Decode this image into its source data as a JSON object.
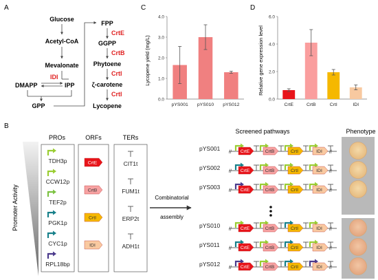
{
  "panel_labels": {
    "a": "A",
    "b": "B",
    "c": "C",
    "d": "D"
  },
  "pathway": {
    "glucose": "Glucose",
    "acetyl_coa": "Acetyl-CoA",
    "mevalonate": "Mevalonate",
    "idi": "IDI",
    "dmapp": "DMAPP",
    "ipp": "IPP",
    "gpp": "GPP",
    "fpp": "FPP",
    "ggpp": "GGPP",
    "phytoene": "Phytoene",
    "zeta_carotene": "ζ-carotene",
    "lycopene": "Lycopene",
    "crte": "CrtE",
    "crtb": "CrtB",
    "crti_1": "CrtI",
    "crti_2": "CrtI"
  },
  "chart_data": [
    {
      "type": "bar",
      "categories": [
        "pYS001",
        "pYS010",
        "pYS012"
      ],
      "values": [
        1.65,
        3.0,
        1.3
      ],
      "errors": [
        0.9,
        0.6,
        0.05
      ],
      "ylabel": "Lycopene yield (mg/L)",
      "ylim": [
        0,
        4.0
      ],
      "yticks": [
        "0.0",
        "1.0",
        "2.0",
        "3.0",
        "4.0"
      ],
      "color": "#f08080"
    },
    {
      "type": "bar",
      "categories": [
        "CrtE",
        "CrtB",
        "CrtI",
        "IDI"
      ],
      "values": [
        0.65,
        4.1,
        1.95,
        0.85
      ],
      "errors": [
        0.1,
        0.95,
        0.2,
        0.18
      ],
      "colors": [
        "#e8141a",
        "#fa9e9e",
        "#f5b800",
        "#f8c9a0"
      ],
      "ylabel": "Relative gene expression level",
      "ylim": [
        0,
        6.0
      ],
      "yticks": [
        "0.0",
        "2.0",
        "4.0",
        "6.0"
      ]
    }
  ],
  "panel_b": {
    "promoter_activity": "Promoter Activity",
    "col_pros": "PROs",
    "col_orfs": "ORFs",
    "col_ters": "TERs",
    "promoters": [
      "TDH3p",
      "CCW12p",
      "TEF2p",
      "PGK1p",
      "CYC1p",
      "RPL18bp"
    ],
    "orfs": [
      "CrtE",
      "CrtB",
      "CrtI",
      "IDI"
    ],
    "terminators": [
      "CIT1t",
      "FUM1t",
      "ERP2t",
      "ADH1t"
    ],
    "arrow_label_1": "Combinatorial",
    "arrow_label_2": "assembly",
    "screened_title": "Screened pathways",
    "phenotype_title": "Phenotype",
    "strains": [
      "pYS001",
      "pYS002",
      "pYS003",
      "pYS010",
      "pYS011",
      "pYS012"
    ],
    "ellipsis": "•\n•\n•",
    "cassette_labels": [
      "CrtE",
      "CrtB",
      "CrtI",
      "IDI"
    ]
  },
  "colors": {
    "crte": "#e8141a",
    "crtb": "#f7a2a2",
    "crti": "#f5b800",
    "idi": "#f9c9a0",
    "prom_lime": "#9acd32",
    "prom_green": "#7cc242",
    "prom_teal": "#17808a",
    "prom_purple": "#4b3a8c",
    "gene_red": "#e02020"
  }
}
